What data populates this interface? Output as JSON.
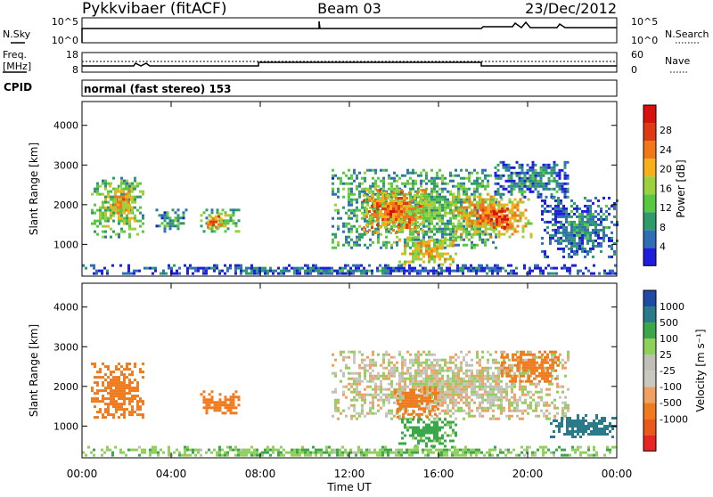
{
  "header": {
    "station": "Pykkvibaer (fitACF)",
    "beam": "Beam 03",
    "date": "23/Dec/2012"
  },
  "nsky": {
    "left_label": "N.Sky",
    "right_label": "N.Search",
    "left_ticks": [
      "10^5",
      "10^0"
    ],
    "right_ticks": [
      "10^5",
      "10^0"
    ]
  },
  "freq": {
    "label_top": "Freq.",
    "label_unit": "[MHz]",
    "left_ticks": [
      "18",
      "8"
    ],
    "right_ticks": [
      "60",
      "0"
    ],
    "right_label": "Nave"
  },
  "cpid": {
    "label": "CPID",
    "text": "normal (fast stereo) 153"
  },
  "colors": {
    "power": [
      "#1d1ddb",
      "#2f6db5",
      "#2f9b6a",
      "#58c742",
      "#9bd13d",
      "#f5b01a",
      "#f0781a",
      "#e03a14",
      "#d81010"
    ],
    "velocity": [
      "#e82525",
      "#e8591a",
      "#f07a1e",
      "#f0a060",
      "#c8c8c0",
      "#bfbfb5",
      "#8fd05a",
      "#3aa84a",
      "#2a7a8a",
      "#1f4aa8"
    ]
  },
  "chart_data": [
    {
      "type": "heatmap",
      "title": "",
      "ylabel": "Slant Range [km]",
      "xlabel": "",
      "x_ticks": [
        "00:00",
        "04:00",
        "08:00",
        "12:00",
        "16:00",
        "20:00",
        "00:00"
      ],
      "y_ticks": [
        "1000",
        "2000",
        "3000",
        "4000"
      ],
      "ylim": [
        200,
        4600
      ],
      "colorbar_label": "Power [dB]",
      "colorbar_ticks": [
        "4",
        "8",
        "12",
        "16",
        "20",
        "24",
        "28"
      ],
      "cells": [
        {
          "t": [
            0.4,
            2.8
          ],
          "r": [
            1200,
            2700
          ],
          "v": 14
        },
        {
          "t": [
            1.2,
            2.2
          ],
          "r": [
            1800,
            2500
          ],
          "v": 20
        },
        {
          "t": [
            3.3,
            4.7
          ],
          "r": [
            1300,
            1900
          ],
          "v": 10
        },
        {
          "t": [
            5.3,
            7.0
          ],
          "r": [
            1300,
            1900
          ],
          "v": 14
        },
        {
          "t": [
            5.6,
            6.2
          ],
          "r": [
            1450,
            1800
          ],
          "v": 22
        },
        {
          "t": [
            11.2,
            18.6
          ],
          "r": [
            900,
            2900
          ],
          "v": 12
        },
        {
          "t": [
            12.6,
            15.4
          ],
          "r": [
            1300,
            2400
          ],
          "v": 22
        },
        {
          "t": [
            14.2,
            16.8
          ],
          "r": [
            500,
            1200
          ],
          "v": 18
        },
        {
          "t": [
            16.5,
            20.2
          ],
          "r": [
            1200,
            2300
          ],
          "v": 20
        },
        {
          "t": [
            18.2,
            19.2
          ],
          "r": [
            1400,
            2000
          ],
          "v": 26
        },
        {
          "t": [
            18.5,
            21.8
          ],
          "r": [
            2200,
            3100
          ],
          "v": 8
        },
        {
          "t": [
            20.6,
            24.0
          ],
          "r": [
            700,
            2200
          ],
          "v": 8
        },
        {
          "t": [
            0.0,
            24.0
          ],
          "r": [
            250,
            500
          ],
          "v": 6
        }
      ]
    },
    {
      "type": "heatmap",
      "title": "",
      "ylabel": "Slant Range [km]",
      "xlabel": "Time UT",
      "x_ticks": [
        "00:00",
        "04:00",
        "08:00",
        "12:00",
        "16:00",
        "20:00",
        "00:00"
      ],
      "y_ticks": [
        "1000",
        "2000",
        "3000",
        "4000"
      ],
      "ylim": [
        200,
        4600
      ],
      "colorbar_label": "Velocity [m s⁻¹]",
      "colorbar_ticks": [
        "1000",
        "500",
        "100",
        "25",
        "-25",
        "-100",
        "-500",
        "-1000"
      ],
      "cells": [
        {
          "t": [
            0.4,
            2.8
          ],
          "r": [
            1200,
            2600
          ],
          "v": -200
        },
        {
          "t": [
            5.3,
            7.0
          ],
          "r": [
            1300,
            1900
          ],
          "v": -300
        },
        {
          "t": [
            11.2,
            21.8
          ],
          "r": [
            1200,
            2900
          ],
          "v": 0
        },
        {
          "t": [
            14.0,
            16.0
          ],
          "r": [
            1200,
            2000
          ],
          "v": -300
        },
        {
          "t": [
            14.2,
            16.8
          ],
          "r": [
            500,
            1200
          ],
          "v": 150
        },
        {
          "t": [
            18.8,
            21.4
          ],
          "r": [
            2100,
            2900
          ],
          "v": -400
        },
        {
          "t": [
            21.0,
            24.0
          ],
          "r": [
            700,
            1300
          ],
          "v": 600
        },
        {
          "t": [
            0.0,
            24.0
          ],
          "r": [
            250,
            500
          ],
          "v": 80
        }
      ]
    }
  ]
}
